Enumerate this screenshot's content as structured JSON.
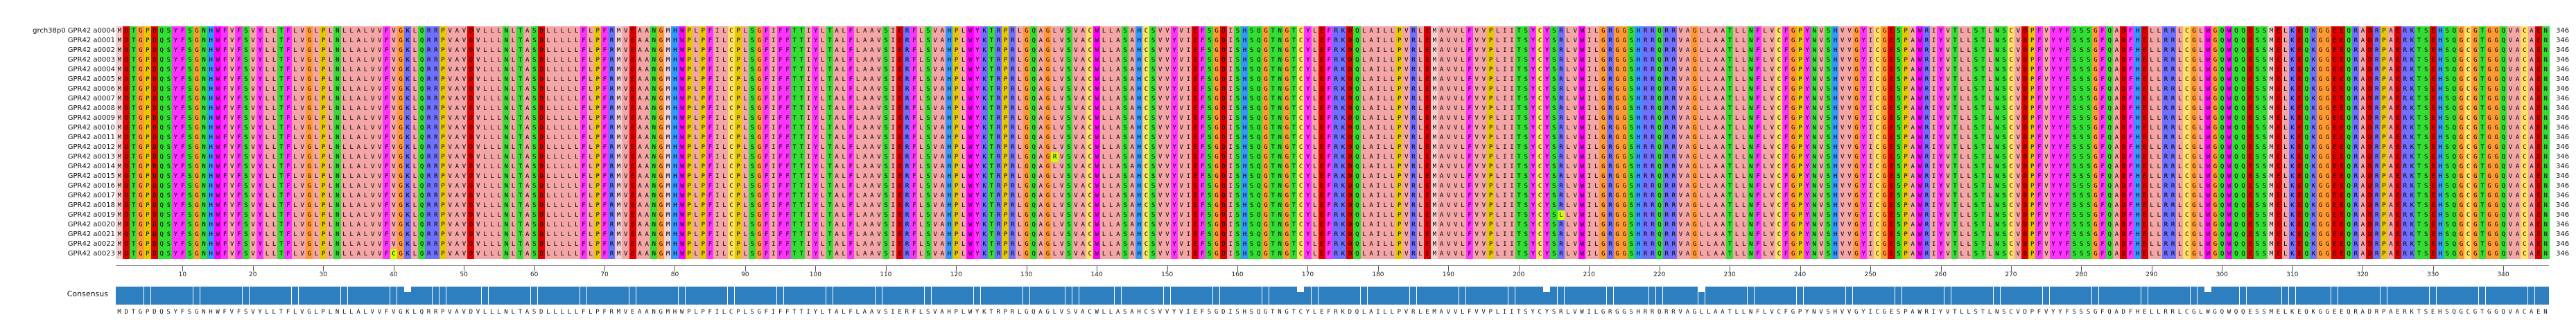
{
  "alignment": {
    "sequence_names": [
      "grch38p0 GPR42 a0004",
      "GPR42 a0001",
      "GPR42 a0002",
      "GPR42 a0003",
      "GPR42 a0004",
      "GPR42 a0005",
      "GPR42 a0006",
      "GPR42 a0007",
      "GPR42 a0008",
      "GPR42 a0009",
      "GPR42 a0010",
      "GPR42 a0011",
      "GPR42 a0012",
      "GPR42 a0013",
      "GPR42 a0014",
      "GPR42 a0015",
      "GPR42 a0016",
      "GPR42 a0017",
      "GPR42 a0018",
      "GPR42 a0019",
      "GPR42 a0020",
      "GPR42 a0021",
      "GPR42 a0022",
      "GPR42 a0023"
    ],
    "sequence_lengths": [
      346,
      346,
      346,
      346,
      346,
      346,
      346,
      346,
      346,
      346,
      346,
      346,
      346,
      346,
      346,
      346,
      346,
      346,
      346,
      346,
      346,
      346,
      346,
      346
    ],
    "consensus_label": "Consensus",
    "consensus_sequence": "MDTGPDQSYFSGNHWFVFSVYLLTFLVGLPLNLLALVVFVGKLQRRPVAVDVLLLNLTASDLLLLLFLPFRMVEAANGMHWPLPFILCPLSGFIFFTTIYLTALFLAAVSIERFLSVAHPLWYKTRPRLGQAGLVSVACWLLASAHCSVVYVIEFSGDISHSQGTNGTCYLEFRKDQLAILLPVRLEMAVVLFVVPLIITSYCYSRLVWILGRGGSHRRQRRVAGLLAATLLNFLVCFGPYNVSHVVGYICGESPAWRIYVTLLSTLNSCVDPFVYYFSSSGFQADFHELLRRLCGLWGQWQQESSMELKEQKGGEEQRADRPAERKTSEHSQGCGTGGQVACAEN",
    "position_ticks": [
      10,
      20,
      30,
      40,
      50,
      60,
      70,
      80,
      90,
      100,
      110,
      120,
      130,
      140,
      150,
      160,
      170,
      180,
      190,
      200,
      210,
      220,
      230,
      240,
      250,
      260,
      270,
      280,
      290,
      300,
      310,
      320,
      330,
      340
    ],
    "variants": [
      {
        "row": 13,
        "pos": 134,
        "aa": "R"
      },
      {
        "row": 19,
        "pos": 206,
        "aa": "L"
      },
      {
        "row": 23,
        "pos": 40,
        "aa": "C"
      }
    ],
    "consensus_dips": [
      42,
      169,
      204,
      226,
      298
    ],
    "colors": {
      "hydrophobic": "#f4a6a6",
      "aromatic": "#ff33ff",
      "tryptophan": "#ff00ff",
      "proline": "#e6c800",
      "glycine": "#ff9933",
      "cysteine": "#ffe066",
      "polar": "#33dd33",
      "acidic": "#e00000",
      "basic": "#7070ff",
      "histidine": "#3399ff",
      "methionine": "#f0d0d0",
      "variant_highlight": "#ccff00",
      "conservation_bar": "#2e7fbf"
    }
  }
}
